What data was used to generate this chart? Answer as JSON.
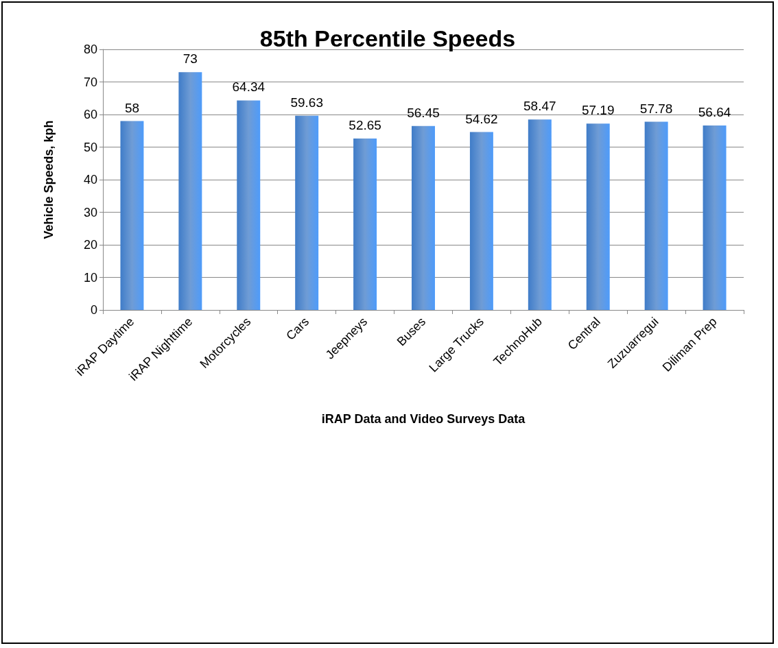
{
  "chart_data": {
    "type": "bar",
    "title": "85th Percentile Speeds",
    "xlabel": "iRAP Data and Video Surveys Data",
    "ylabel": "Vehicle Speeds, kph",
    "categories": [
      "iRAP Daytime",
      "iRAP Nighttime",
      "Motorcycles",
      "Cars",
      "Jeepneys",
      "Buses",
      "Large Trucks",
      "TechnoHub",
      "Central",
      "Zuzuarregui",
      "Diliman Prep"
    ],
    "values": [
      58,
      73,
      64.34,
      59.63,
      52.65,
      56.45,
      54.62,
      58.47,
      57.19,
      57.78,
      56.64
    ],
    "color": "#3f7cc8",
    "ylim": [
      0,
      80
    ],
    "yticks": [
      0,
      10,
      20,
      30,
      40,
      50,
      60,
      70,
      80
    ],
    "grid": "y",
    "data_labels": true
  }
}
